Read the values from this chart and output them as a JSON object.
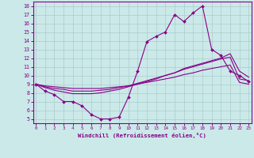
{
  "xlabel": "Windchill (Refroidissement éolien,°C)",
  "background_color": "#cbe9e9",
  "line_color": "#880088",
  "grid_color": "#aacccc",
  "x_ticks": [
    0,
    1,
    2,
    3,
    4,
    5,
    6,
    7,
    8,
    9,
    10,
    11,
    12,
    13,
    14,
    15,
    16,
    17,
    18,
    19,
    20,
    21,
    22,
    23
  ],
  "y_ticks": [
    5,
    6,
    7,
    8,
    9,
    10,
    11,
    12,
    13,
    14,
    15,
    16,
    17,
    18
  ],
  "ylim": [
    4.5,
    18.5
  ],
  "xlim": [
    -0.3,
    23.3
  ],
  "line1_x": [
    0,
    1,
    2,
    3,
    4,
    5,
    6,
    7,
    8,
    9,
    10,
    11,
    12,
    13,
    14,
    15,
    16,
    17,
    18,
    19,
    20,
    21,
    22,
    23
  ],
  "line1_y": [
    9.0,
    8.2,
    7.8,
    7.0,
    7.0,
    6.5,
    5.5,
    5.0,
    5.0,
    5.2,
    7.5,
    10.5,
    13.9,
    14.5,
    15.0,
    17.0,
    16.2,
    17.2,
    18.0,
    13.0,
    12.3,
    10.5,
    10.0,
    9.3
  ],
  "line2_x": [
    0,
    1,
    2,
    3,
    4,
    5,
    6,
    7,
    8,
    9,
    10,
    11,
    12,
    13,
    14,
    15,
    16,
    17,
    18,
    19,
    20,
    21,
    22,
    23
  ],
  "line2_y": [
    9.0,
    8.8,
    8.7,
    8.6,
    8.5,
    8.5,
    8.5,
    8.5,
    8.6,
    8.7,
    8.8,
    9.0,
    9.2,
    9.4,
    9.6,
    9.8,
    10.1,
    10.3,
    10.6,
    10.8,
    11.0,
    11.2,
    9.2,
    9.0
  ],
  "line3_x": [
    0,
    1,
    2,
    3,
    4,
    5,
    6,
    7,
    8,
    9,
    10,
    11,
    12,
    13,
    14,
    15,
    16,
    17,
    18,
    19,
    20,
    21,
    22,
    23
  ],
  "line3_y": [
    9.0,
    8.7,
    8.5,
    8.4,
    8.2,
    8.2,
    8.2,
    8.3,
    8.4,
    8.6,
    8.8,
    9.1,
    9.4,
    9.7,
    10.0,
    10.3,
    10.7,
    11.0,
    11.3,
    11.6,
    11.9,
    12.1,
    9.6,
    9.4
  ],
  "line4_x": [
    0,
    1,
    2,
    3,
    4,
    5,
    6,
    7,
    8,
    9,
    10,
    11,
    12,
    13,
    14,
    15,
    16,
    17,
    18,
    19,
    20,
    21,
    22,
    23
  ],
  "line4_y": [
    9.0,
    8.6,
    8.3,
    8.1,
    7.9,
    7.9,
    7.9,
    8.0,
    8.2,
    8.4,
    8.7,
    9.0,
    9.3,
    9.6,
    10.0,
    10.3,
    10.8,
    11.1,
    11.4,
    11.7,
    12.0,
    12.5,
    10.5,
    9.8
  ]
}
